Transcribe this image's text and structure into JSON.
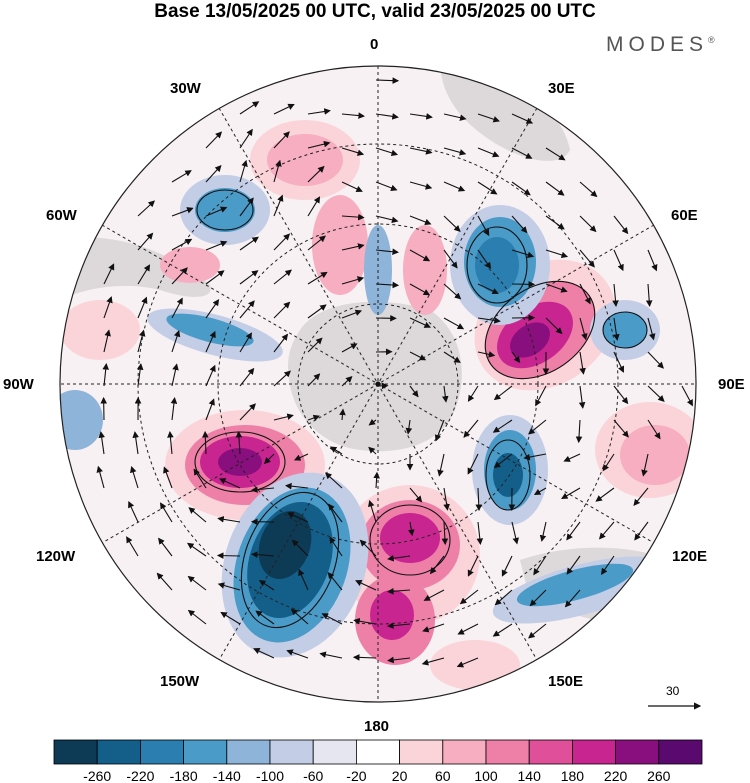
{
  "title": "Base 13/05/2025 00 UTC, valid 23/05/2025 00 UTC",
  "brand": {
    "name": "MODES",
    "mark": "®"
  },
  "meridian_labels": {
    "lon_0": "0",
    "lon_30e": "30E",
    "lon_60e": "60E",
    "lon_90e": "90E",
    "lon_120e": "120E",
    "lon_150e": "150E",
    "lon_180": "180",
    "lon_150w": "150W",
    "lon_120w": "120W",
    "lon_90w": "90W",
    "lon_60w": "60W",
    "lon_30w": "30W"
  },
  "reference_vector": {
    "value": "30"
  },
  "colorbar": {
    "ticks": [
      "-260",
      "-220",
      "-180",
      "-140",
      "-100",
      "-60",
      "-20",
      "20",
      "60",
      "100",
      "140",
      "180",
      "220",
      "260"
    ],
    "colors": [
      "#0d3a55",
      "#135f8a",
      "#2a7fb0",
      "#4b9bc9",
      "#8fb4d9",
      "#c3cde6",
      "#e6e6f1",
      "#ffffff",
      "#fad4d8",
      "#f6aec0",
      "#ee80a8",
      "#e0509a",
      "#c82590",
      "#8a0f7e",
      "#5a0a6e"
    ]
  },
  "map": {
    "projection": "south-polar-stereographic",
    "palette": {
      "grid": "#222222",
      "land": "#bfbfbf",
      "outline": "#333333"
    }
  }
}
